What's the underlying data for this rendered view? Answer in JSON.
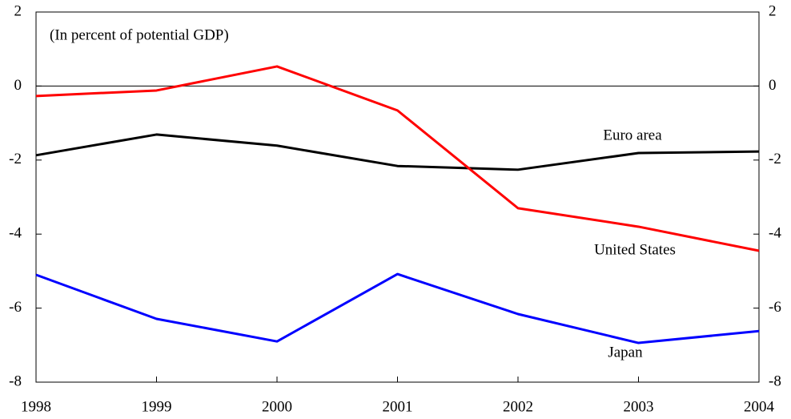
{
  "chart_data": {
    "type": "line",
    "subtitle": "(In percent of potential GDP)",
    "categories": [
      "1998",
      "1999",
      "2000",
      "2001",
      "2002",
      "2003",
      "2004"
    ],
    "series": [
      {
        "name": "Euro area",
        "color": "#000000",
        "values": [
          -1.87,
          -1.31,
          -1.61,
          -2.16,
          -2.26,
          -1.81,
          -1.77
        ]
      },
      {
        "name": "United States",
        "color": "#ff0000",
        "values": [
          -0.27,
          -0.12,
          0.53,
          -0.66,
          -3.3,
          -3.8,
          -4.45
        ]
      },
      {
        "name": "Japan",
        "color": "#0000ff",
        "values": [
          -5.1,
          -6.29,
          -6.9,
          -5.08,
          -6.16,
          -6.94,
          -6.62
        ]
      }
    ],
    "ylim": [
      -8,
      2
    ],
    "yticks": [
      -8,
      -6,
      -4,
      -2,
      0,
      2
    ],
    "y2lim": [
      -8,
      2
    ],
    "y2ticks": [
      -8,
      -6,
      -4,
      -2,
      0,
      2
    ]
  }
}
